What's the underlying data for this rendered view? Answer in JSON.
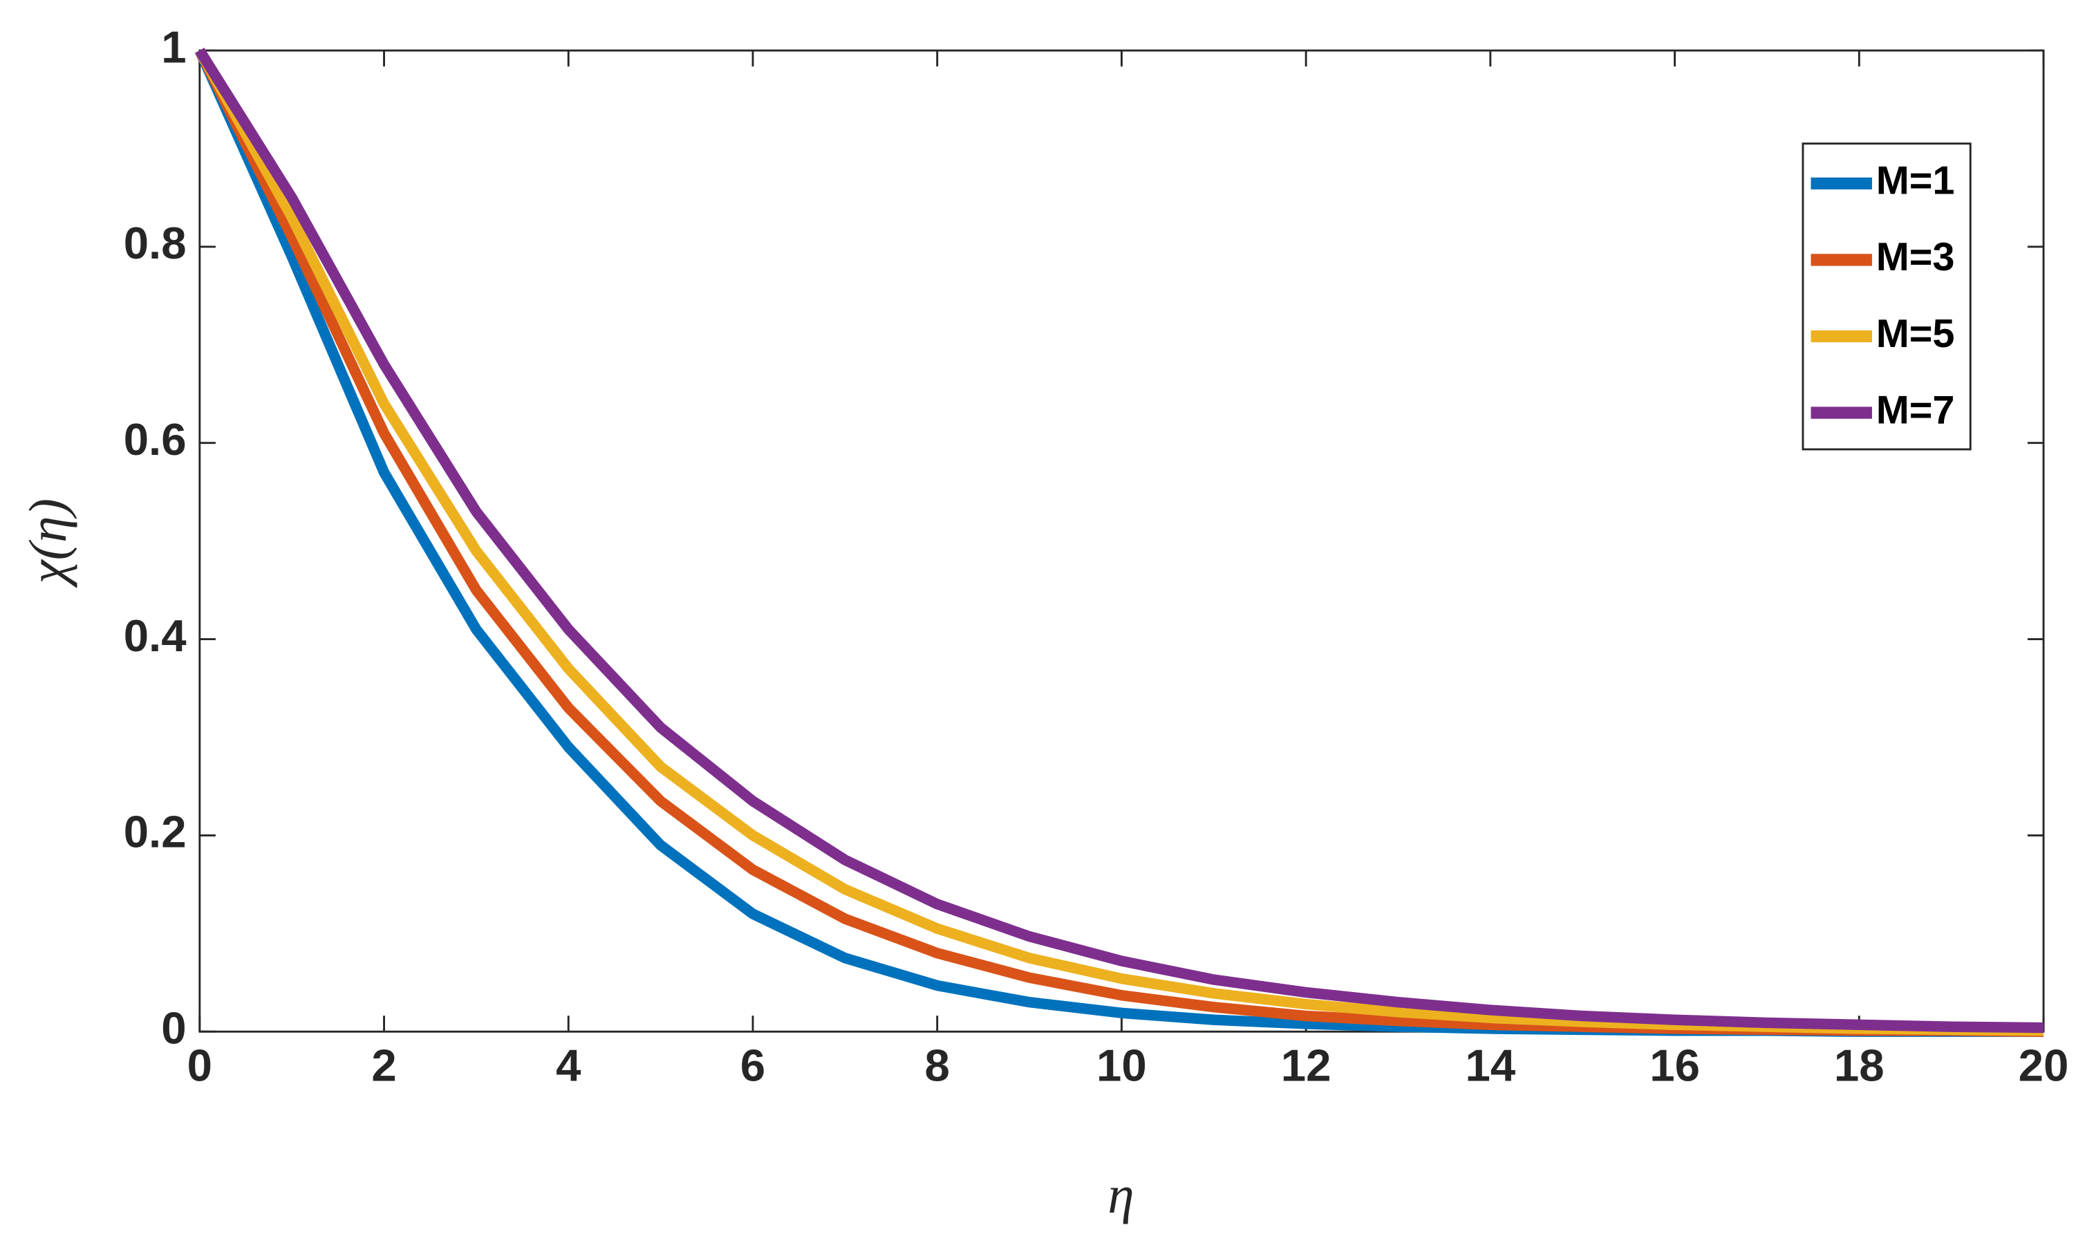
{
  "chart_data": {
    "type": "line",
    "x_label": "η",
    "y_label": "χ(η)",
    "x": [
      0,
      1,
      2,
      3,
      4,
      5,
      6,
      7,
      8,
      9,
      10,
      11,
      12,
      13,
      14,
      15,
      16,
      17,
      18,
      19,
      20
    ],
    "series": [
      {
        "name": "M=1",
        "color": "#0072bd",
        "values": [
          1,
          0.79,
          0.57,
          0.41,
          0.29,
          0.19,
          0.12,
          0.075,
          0.047,
          0.03,
          0.019,
          0.012,
          0.008,
          0.005,
          0.003,
          0.002,
          0.001,
          0.001,
          0,
          0,
          0
        ]
      },
      {
        "name": "M=3",
        "color": "#d95319",
        "values": [
          1,
          0.81,
          0.61,
          0.45,
          0.33,
          0.235,
          0.165,
          0.115,
          0.08,
          0.055,
          0.037,
          0.025,
          0.016,
          0.011,
          0.007,
          0.005,
          0.003,
          0.002,
          0.001,
          0.001,
          0
        ]
      },
      {
        "name": "M=5",
        "color": "#edb120",
        "values": [
          1,
          0.83,
          0.64,
          0.49,
          0.37,
          0.27,
          0.2,
          0.145,
          0.105,
          0.075,
          0.054,
          0.039,
          0.028,
          0.02,
          0.014,
          0.01,
          0.007,
          0.005,
          0.003,
          0.002,
          0.001
        ]
      },
      {
        "name": "M=7",
        "color": "#7e2f8e",
        "values": [
          1,
          0.85,
          0.68,
          0.53,
          0.41,
          0.31,
          0.235,
          0.175,
          0.13,
          0.097,
          0.072,
          0.053,
          0.04,
          0.03,
          0.022,
          0.016,
          0.012,
          0.009,
          0.007,
          0.005,
          0.004
        ]
      }
    ],
    "xlim": [
      0,
      20
    ],
    "xticks": [
      0,
      2,
      4,
      6,
      8,
      10,
      12,
      14,
      16,
      18,
      20
    ],
    "ylim": [
      0,
      1
    ],
    "yticks": [
      0,
      0.2,
      0.4,
      0.6,
      0.8,
      1
    ],
    "legend": "upper right"
  }
}
